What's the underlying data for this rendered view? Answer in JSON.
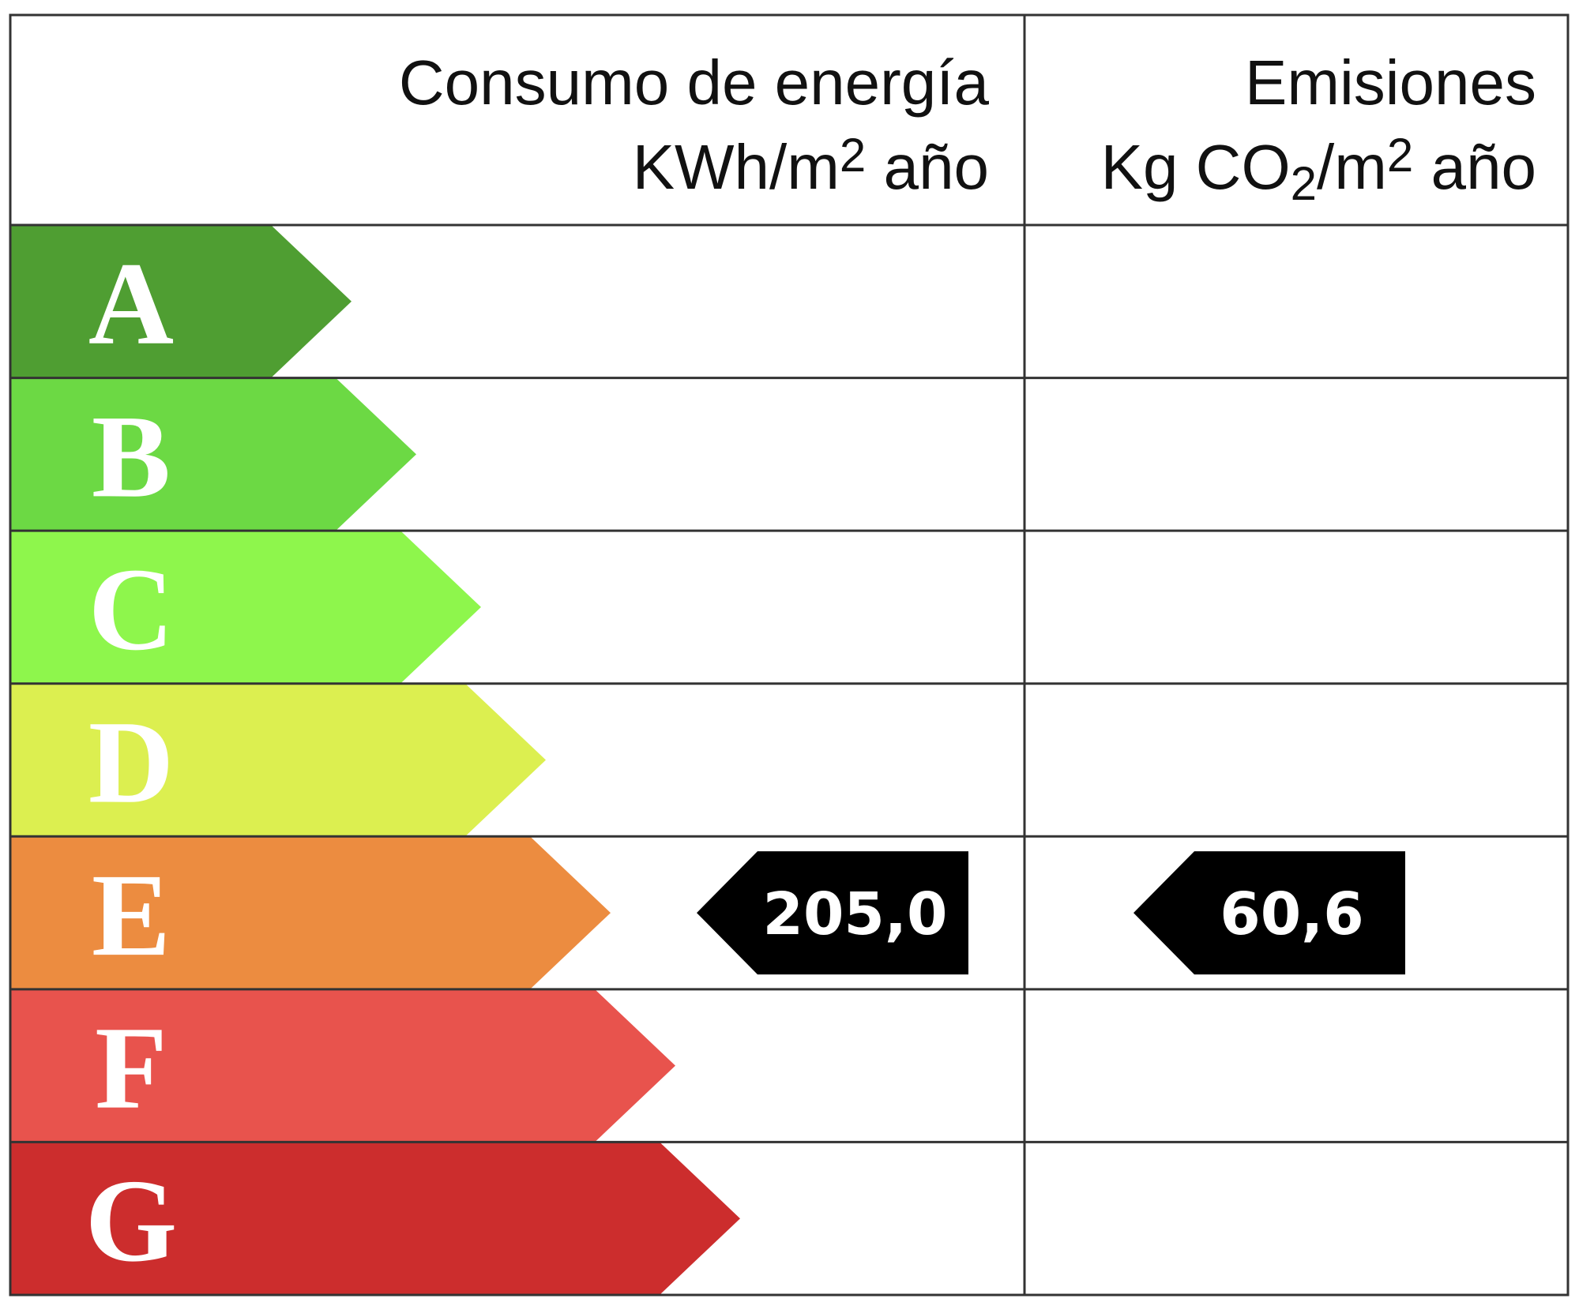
{
  "header": {
    "energy": {
      "title": "Consumo de energía",
      "unit": [
        "KWh/m",
        "2",
        " año"
      ]
    },
    "emissions": {
      "title": "Emisiones",
      "unit": [
        "Kg CO",
        "2",
        "/m",
        "2",
        " año"
      ]
    }
  },
  "rows": [
    {
      "letter": "A",
      "color": "#4f9e32"
    },
    {
      "letter": "B",
      "color": "#6cd944"
    },
    {
      "letter": "C",
      "color": "#8ef64c"
    },
    {
      "letter": "D",
      "color": "#dcef50"
    },
    {
      "letter": "E",
      "color": "#ec8c40",
      "energy": "205,0",
      "emissions": "60,6"
    },
    {
      "letter": "F",
      "color": "#e8534d"
    },
    {
      "letter": "G",
      "color": "#cc2d2d"
    }
  ]
}
